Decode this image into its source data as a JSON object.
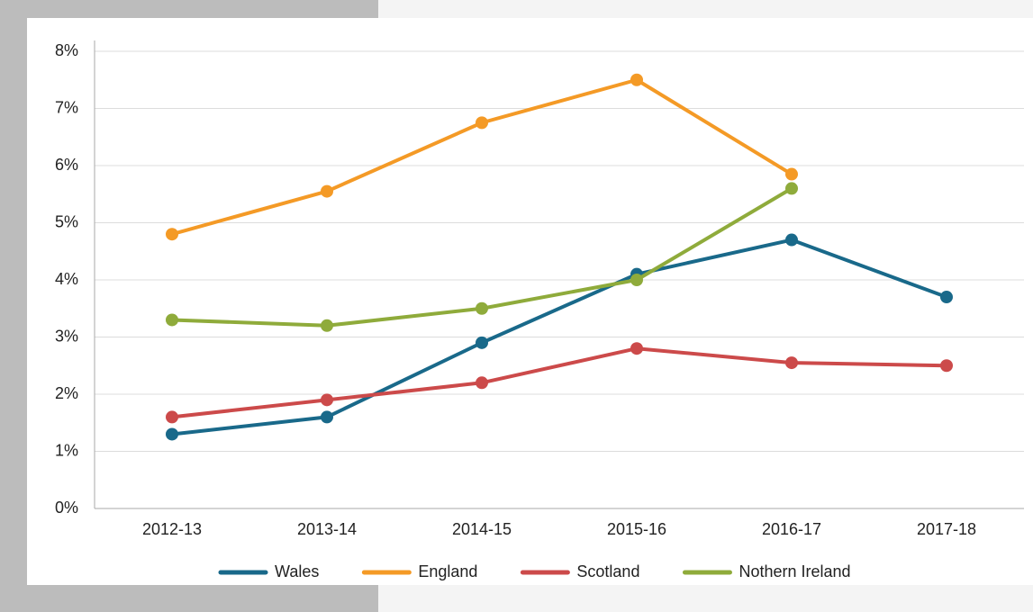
{
  "chart_data": {
    "type": "line",
    "categories": [
      "2012-13",
      "2013-14",
      "2014-15",
      "2015-16",
      "2016-17",
      "2017-18"
    ],
    "series": [
      {
        "name": "Wales",
        "color": "#19698a",
        "values": [
          1.3,
          1.6,
          2.9,
          4.1,
          4.7,
          3.7
        ]
      },
      {
        "name": "England",
        "color": "#f49a26",
        "values": [
          4.8,
          5.55,
          6.75,
          7.5,
          5.85,
          null
        ]
      },
      {
        "name": "Scotland",
        "color": "#cc4a4a",
        "values": [
          1.6,
          1.9,
          2.2,
          2.8,
          2.55,
          2.5
        ]
      },
      {
        "name": "Nothern Ireland",
        "color": "#8fab3b",
        "values": [
          3.3,
          3.2,
          3.5,
          4.0,
          5.6,
          null
        ]
      }
    ],
    "ylim": [
      0,
      8
    ],
    "yticks": [
      {
        "value": 0,
        "label": "0%"
      },
      {
        "value": 1,
        "label": "1%"
      },
      {
        "value": 2,
        "label": "2%"
      },
      {
        "value": 3,
        "label": "3%"
      },
      {
        "value": 4,
        "label": "4%"
      },
      {
        "value": 5,
        "label": "5%"
      },
      {
        "value": 6,
        "label": "6%"
      },
      {
        "value": 7,
        "label": "7%"
      },
      {
        "value": 8,
        "label": "8%"
      }
    ],
    "grid": true,
    "legend": "bottom"
  }
}
